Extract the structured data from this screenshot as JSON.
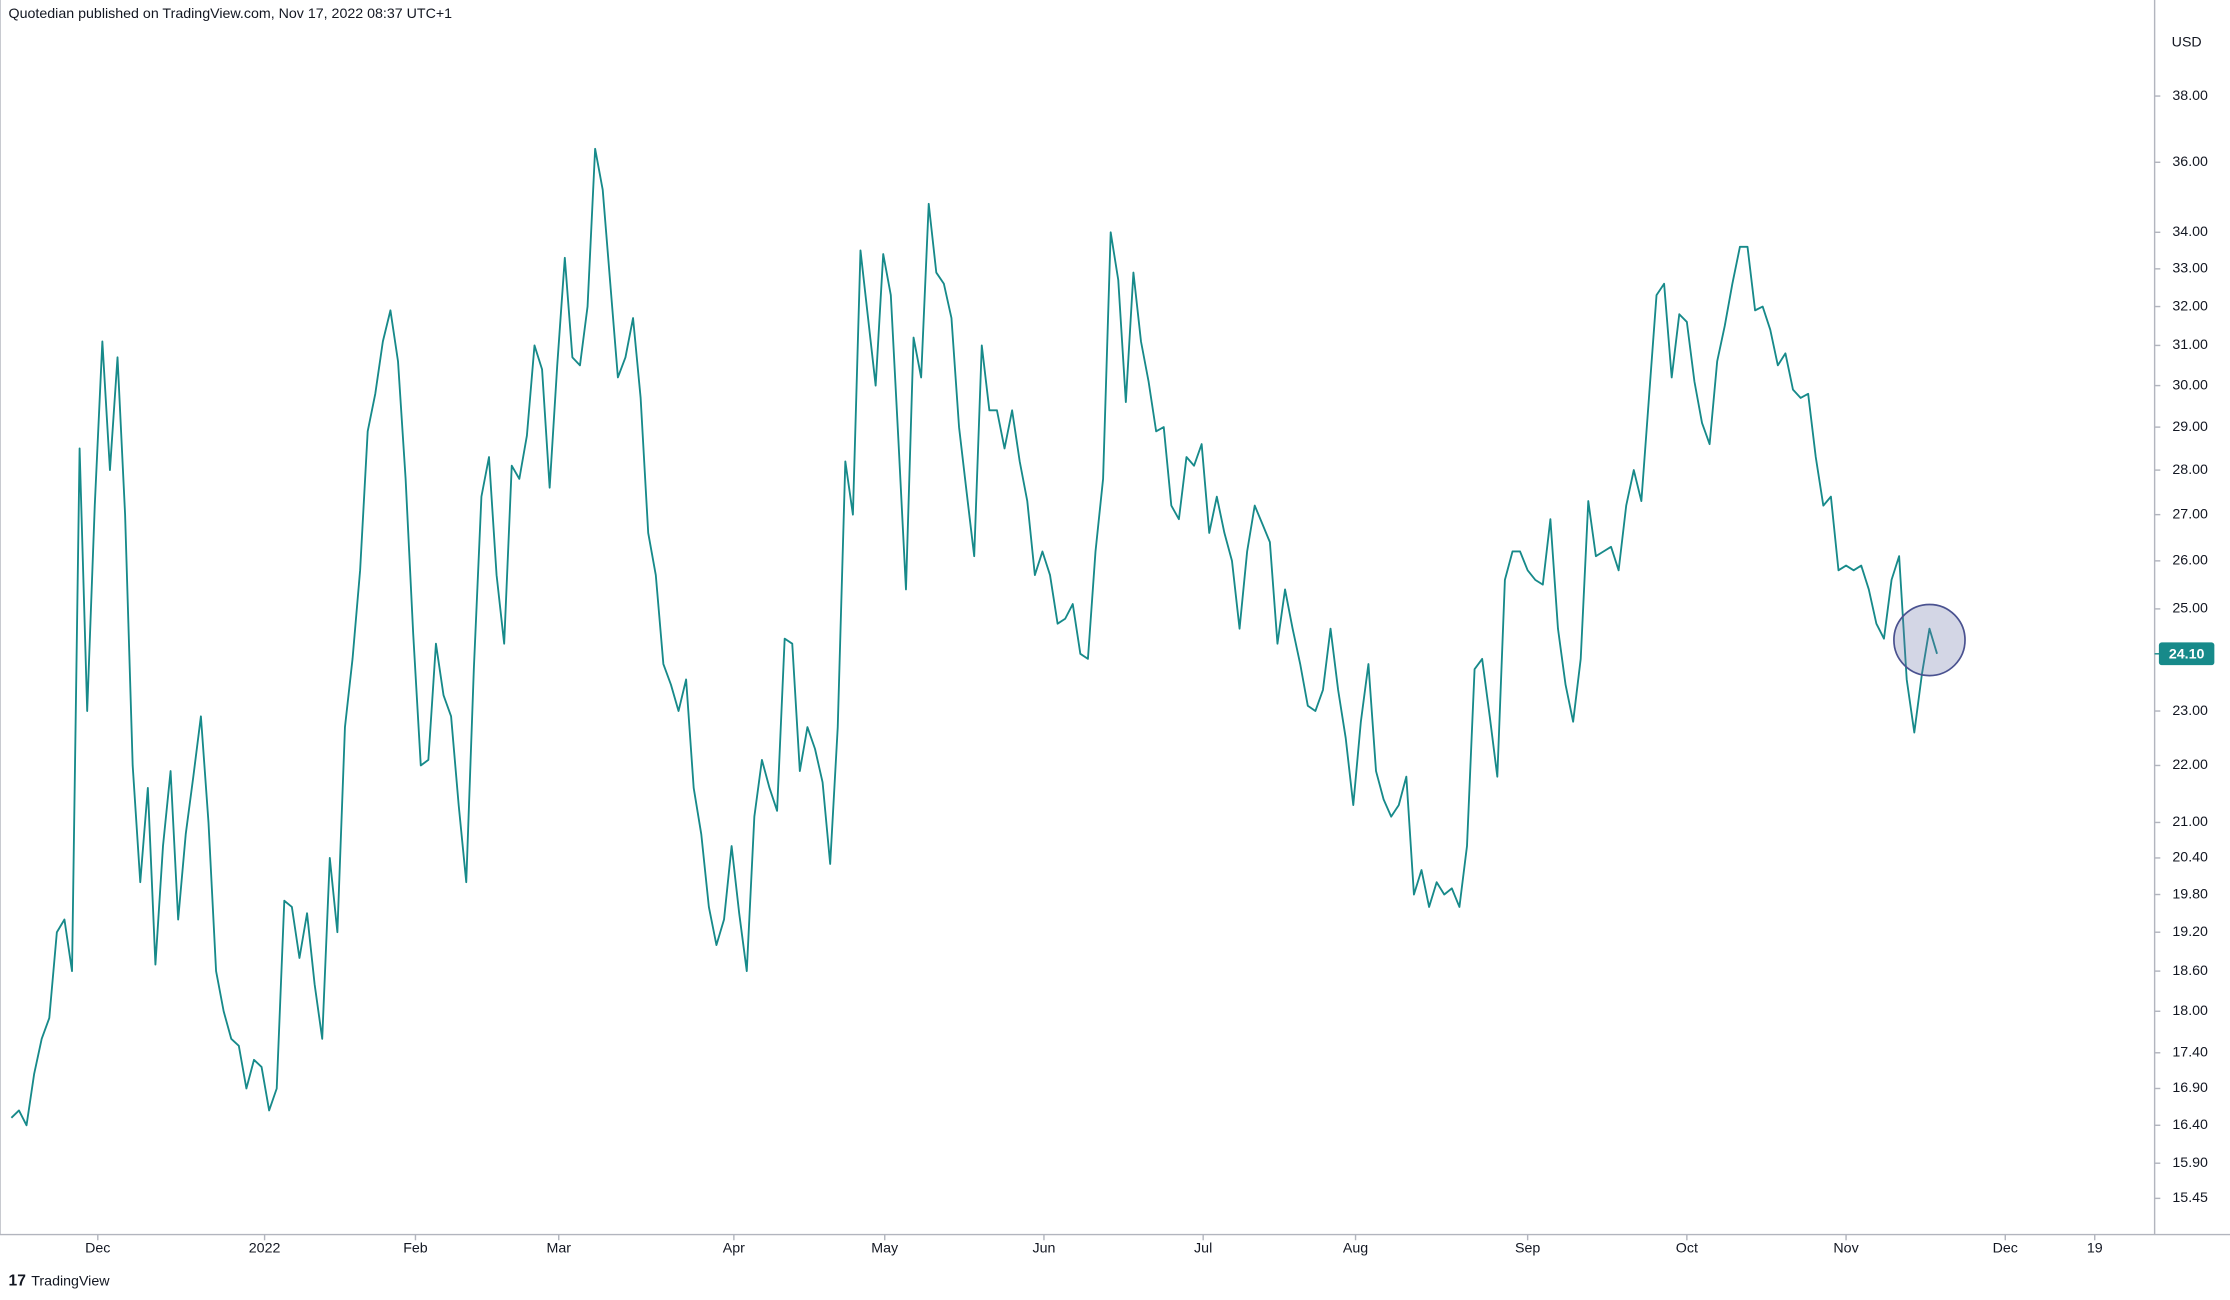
{
  "header": "Quotedian published on TradingView.com, Nov 17, 2022 08:37 UTC+1",
  "footer": "TradingView",
  "chart_data": {
    "type": "line",
    "currency": "USD",
    "log_scale": true,
    "color": "#178a8a",
    "values": [
      16.5,
      16.6,
      16.4,
      17.1,
      17.6,
      17.9,
      19.2,
      19.4,
      18.6,
      28.5,
      23.0,
      27.2,
      31.1,
      28.0,
      30.7,
      27.0,
      22.0,
      20.0,
      21.6,
      18.7,
      20.6,
      21.9,
      19.4,
      20.8,
      21.8,
      22.9,
      21.0,
      18.6,
      18.0,
      17.6,
      17.5,
      16.9,
      17.3,
      17.2,
      16.6,
      16.9,
      19.7,
      19.6,
      18.8,
      19.5,
      18.4,
      17.6,
      20.4,
      19.2,
      22.7,
      24.0,
      25.8,
      28.9,
      29.8,
      31.1,
      31.9,
      30.6,
      27.8,
      24.5,
      22.0,
      22.1,
      24.3,
      23.3,
      22.9,
      21.3,
      20.0,
      23.8,
      27.4,
      28.3,
      25.7,
      24.3,
      28.1,
      27.8,
      28.8,
      31.0,
      30.4,
      27.6,
      30.5,
      33.3,
      30.7,
      30.5,
      32.0,
      36.4,
      35.2,
      32.6,
      30.2,
      30.7,
      31.7,
      29.7,
      26.6,
      25.7,
      23.9,
      23.5,
      23.0,
      23.6,
      21.6,
      20.8,
      19.6,
      19.0,
      19.4,
      20.6,
      19.5,
      18.6,
      21.1,
      22.1,
      21.6,
      21.2,
      24.4,
      24.3,
      21.9,
      22.7,
      22.3,
      21.7,
      20.3,
      22.7,
      28.2,
      27.0,
      33.5,
      31.7,
      30.0,
      33.4,
      32.3,
      28.7,
      25.4,
      31.2,
      30.2,
      34.8,
      32.9,
      32.6,
      31.7,
      29.0,
      27.5,
      26.1,
      31.0,
      29.4,
      29.4,
      28.5,
      29.4,
      28.2,
      27.3,
      25.7,
      26.2,
      25.7,
      24.7,
      24.8,
      25.1,
      24.1,
      24.0,
      26.2,
      27.8,
      34.0,
      32.7,
      29.6,
      32.9,
      31.1,
      30.1,
      28.9,
      29.0,
      27.2,
      26.9,
      28.3,
      28.1,
      28.6,
      26.6,
      27.4,
      26.6,
      26.0,
      24.6,
      26.2,
      27.2,
      26.8,
      26.4,
      24.3,
      25.4,
      24.6,
      23.9,
      23.1,
      23.0,
      23.4,
      24.6,
      23.4,
      22.5,
      21.3,
      22.8,
      23.9,
      21.9,
      21.4,
      21.1,
      21.3,
      21.8,
      19.8,
      20.2,
      19.6,
      20.0,
      19.8,
      19.9,
      19.6,
      20.6,
      23.8,
      24.0,
      22.9,
      21.8,
      25.6,
      26.2,
      26.2,
      25.8,
      25.6,
      25.5,
      26.9,
      24.6,
      23.5,
      22.8,
      24.0,
      27.3,
      26.1,
      26.2,
      26.3,
      25.8,
      27.2,
      28.0,
      27.3,
      29.7,
      32.3,
      32.6,
      30.2,
      31.8,
      31.6,
      30.1,
      29.1,
      28.6,
      30.6,
      31.5,
      32.6,
      33.6,
      33.6,
      31.9,
      32.0,
      31.4,
      30.5,
      30.8,
      29.9,
      29.7,
      29.8,
      28.3,
      27.2,
      27.4,
      25.8,
      25.9,
      25.8,
      25.9,
      25.4,
      24.7,
      24.4,
      25.6,
      26.1,
      23.6,
      22.6,
      23.7,
      24.6,
      24.1
    ],
    "last_price": {
      "value": 24.1,
      "label": "24.10"
    },
    "xlim": [
      -1.5,
      282.7
    ],
    "xticks": [
      {
        "value": 11.4,
        "label": "Dec"
      },
      {
        "value": 33.4,
        "label": "2022"
      },
      {
        "value": 53.3,
        "label": "Feb"
      },
      {
        "value": 72.2,
        "label": "Mar"
      },
      {
        "value": 95.3,
        "label": "Apr"
      },
      {
        "value": 115.2,
        "label": "May"
      },
      {
        "value": 136.2,
        "label": "Jun"
      },
      {
        "value": 157.2,
        "label": "Jul"
      },
      {
        "value": 177.3,
        "label": "Aug"
      },
      {
        "value": 200,
        "label": "Sep"
      },
      {
        "value": 221,
        "label": "Oct"
      },
      {
        "value": 242,
        "label": "Nov"
      },
      {
        "value": 263,
        "label": "Dec"
      },
      {
        "value": 274.8,
        "label": "19"
      }
    ],
    "ylim": [
      15.0,
      41.1
    ],
    "yticks": [
      15.45,
      {
        "value": 15.9,
        "label": "15.90"
      },
      {
        "value": 16.4,
        "label": "16.40"
      },
      {
        "value": 16.9,
        "label": "16.90"
      },
      {
        "value": 17.4,
        "label": "17.40"
      },
      {
        "value": 18,
        "label": "18.00"
      },
      {
        "value": 18.6,
        "label": "18.60"
      },
      {
        "value": 19.2,
        "label": "19.20"
      },
      {
        "value": 19.8,
        "label": "19.80"
      },
      {
        "value": 20.4,
        "label": "20.40"
      },
      {
        "value": 21,
        "label": "21.00"
      },
      {
        "value": 22,
        "label": "22.00"
      },
      {
        "value": 23,
        "label": "23.00"
      },
      {
        "value": 25,
        "label": "25.00"
      },
      {
        "value": 26,
        "label": "26.00"
      },
      {
        "value": 27,
        "label": "27.00"
      },
      {
        "value": 28,
        "label": "28.00"
      },
      {
        "value": 29,
        "label": "29.00"
      },
      {
        "value": 30,
        "label": "30.00"
      },
      {
        "value": 31,
        "label": "31.00"
      },
      {
        "value": 32,
        "label": "32.00"
      },
      {
        "value": 33,
        "label": "33.00"
      },
      {
        "value": 34,
        "label": "34.00"
      },
      {
        "value": 36,
        "label": "36.00"
      },
      {
        "value": 38,
        "label": "38.00"
      }
    ]
  }
}
